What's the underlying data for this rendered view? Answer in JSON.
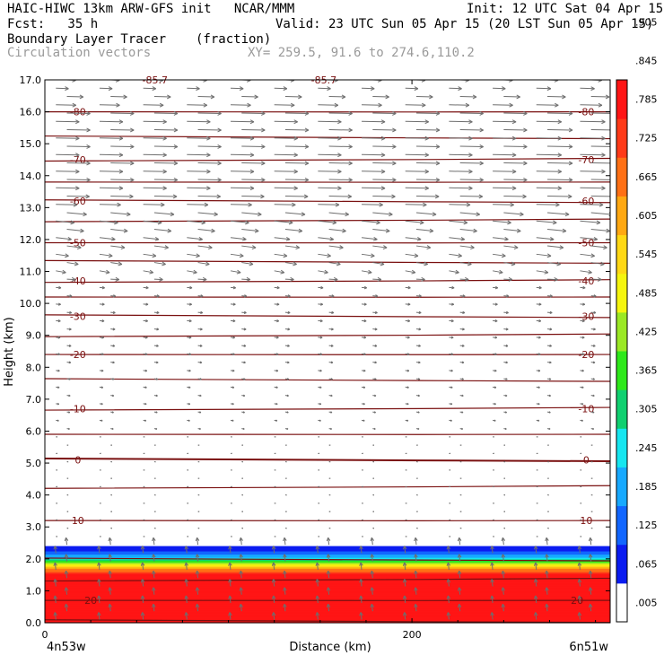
{
  "header": {
    "model_line": "HAIC-HIWC 13km ARW-GFS init   NCAR/MMM",
    "init_line": "Init: 12 UTC Sat 04 Apr 15",
    "fcst_line": "Fcst:   35 h",
    "valid_line": "Valid: 23 UTC Sun 05 Apr 15 (20 LST Sun 05 Apr 15)",
    "field_name": "Boundary Layer Tracer",
    "field_units": "(fraction)",
    "vector_name": "Circulation vectors",
    "xy_range": "XY= 259.5, 91.6 to 274.6,110.2"
  },
  "colors": {
    "contour": "#7a1010",
    "vector": "#6e6e6e",
    "colorbar": [
      "#ffffff",
      "#0b1cf0",
      "#1266ff",
      "#17a9ff",
      "#16e6f0",
      "#10d070",
      "#2ee81a",
      "#9be825",
      "#f5f50e",
      "#ffd814",
      "#ffa812",
      "#ff7015",
      "#ff3a18",
      "#ff1515"
    ]
  },
  "chart_data": {
    "type": "heatmap",
    "xlabel": "Distance (km)",
    "ylabel": "Height (km)",
    "x_range": [
      0,
      308
    ],
    "ylim": [
      0.0,
      17.0
    ],
    "x_ticks": [
      0,
      200
    ],
    "x_tick_labels": [
      "0",
      "200"
    ],
    "y_ticks": [
      0.0,
      1.0,
      2.0,
      3.0,
      4.0,
      5.0,
      6.0,
      7.0,
      8.0,
      9.0,
      10.0,
      11.0,
      12.0,
      13.0,
      14.0,
      15.0,
      16.0,
      17.0
    ],
    "y_tick_labels": [
      "0.0",
      "1.0",
      "2.0",
      "3.0",
      "4.0",
      "5.0",
      "6.0",
      "7.0",
      "8.0",
      "9.0",
      "10.0",
      "11.0",
      "12.0",
      "13.0",
      "14.0",
      "15.0",
      "16.0",
      "17.0"
    ],
    "left_endpoint": "4n53w",
    "right_endpoint": "6n51w",
    "colorbar_labels": [
      ".005",
      ".065",
      ".125",
      ".185",
      ".245",
      ".305",
      ".365",
      ".425",
      ".485",
      ".545",
      ".605",
      ".665",
      ".725",
      ".785",
      ".845",
      ".905",
      "–"
    ],
    "tracer_profile": [
      {
        "height_km": 0.0,
        "fraction": 1.0
      },
      {
        "height_km": 0.9,
        "fraction": 0.99
      },
      {
        "height_km": 1.4,
        "fraction": 0.82
      },
      {
        "height_km": 1.7,
        "fraction": 0.6
      },
      {
        "height_km": 1.9,
        "fraction": 0.35
      },
      {
        "height_km": 2.1,
        "fraction": 0.15
      },
      {
        "height_km": 2.3,
        "fraction": 0.05
      },
      {
        "height_km": 2.4,
        "fraction": 0.0
      }
    ],
    "contour_labels": [
      {
        "text": "-80",
        "height_km": 16.0
      },
      {
        "text": "-70",
        "height_km": 14.5
      },
      {
        "text": "-60",
        "height_km": 13.2
      },
      {
        "text": "-50",
        "height_km": 11.9
      },
      {
        "text": "-40",
        "height_km": 10.7
      },
      {
        "text": "-30",
        "height_km": 9.6
      },
      {
        "text": "-20",
        "height_km": 8.4
      },
      {
        "text": "-10",
        "height_km": 6.7
      },
      {
        "text": "0",
        "height_km": 5.1
      },
      {
        "text": "10",
        "height_km": 3.2
      },
      {
        "text": "20",
        "height_km": 0.7
      },
      {
        "text": "-85.7",
        "height_km": 17.0
      },
      {
        "text": "-85.7",
        "height_km": 17.0
      }
    ],
    "contour_heights_km": [
      0.05,
      0.7,
      1.35,
      1.98,
      3.2,
      4.25,
      5.1,
      5.9,
      6.7,
      7.6,
      8.4,
      9.0,
      9.6,
      10.2,
      10.7,
      11.3,
      11.9,
      12.6,
      13.2,
      13.8,
      14.5,
      15.2,
      16.0
    ]
  }
}
